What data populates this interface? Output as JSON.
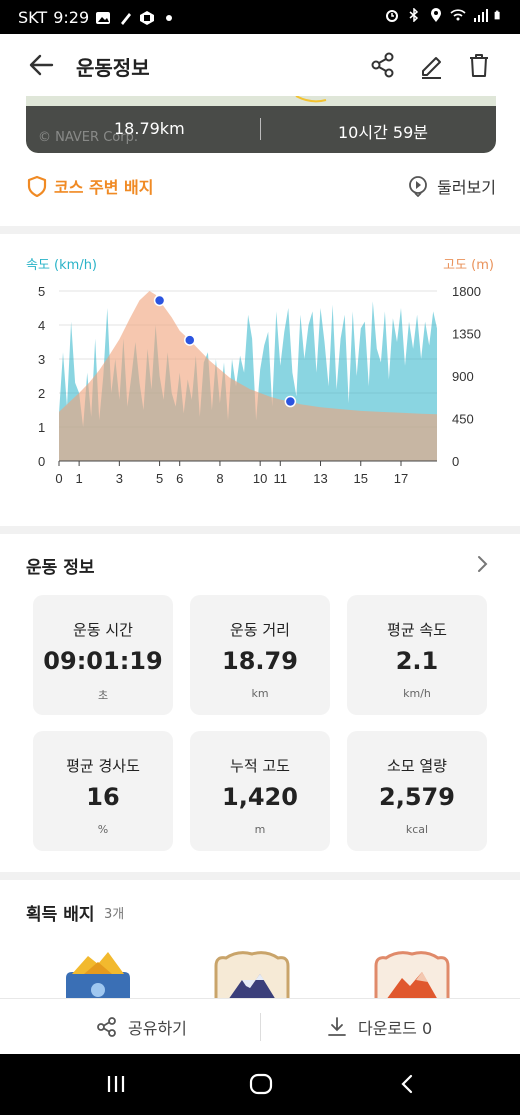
{
  "status_bar": {
    "carrier": "SKT",
    "time": "9:29"
  },
  "header": {
    "title": "운동정보"
  },
  "map": {
    "distance": "18.79km",
    "duration": "10시간 59분",
    "credit": "© NAVER Corp."
  },
  "links": {
    "course_badge": "코스 주변 배지",
    "tour": "둘러보기"
  },
  "chart_data": {
    "type": "area",
    "left_axis_label": "속도 (km/h)",
    "right_axis_label": "고도 (m)",
    "left_ticks": [
      "5",
      "4",
      "3",
      "2",
      "1",
      "0"
    ],
    "right_ticks": [
      "1800",
      "1350",
      "900",
      "450",
      "0"
    ],
    "x_ticks": [
      "0",
      "1",
      "3",
      "5",
      "6",
      "8",
      "10",
      "11",
      "13",
      "15",
      "17"
    ],
    "ylim_left": [
      0,
      5
    ],
    "ylim_right": [
      0,
      1800
    ],
    "xlim": [
      0,
      18.79
    ],
    "colors": {
      "speed": "#29b3c8",
      "altitude": "#f0a27a",
      "marker": "#2b54e0"
    },
    "series": [
      {
        "name": "속도 (km/h)",
        "axis": "left",
        "x": [
          0,
          0.2,
          0.4,
          0.6,
          0.8,
          1.0,
          1.2,
          1.4,
          1.6,
          1.8,
          2.0,
          2.2,
          2.4,
          2.6,
          2.8,
          3.0,
          3.2,
          3.4,
          3.6,
          3.8,
          4.0,
          4.2,
          4.4,
          4.6,
          4.8,
          5.0,
          5.2,
          5.4,
          5.6,
          5.8,
          6.0,
          6.2,
          6.4,
          6.6,
          6.8,
          7.0,
          7.2,
          7.4,
          7.6,
          7.8,
          8.0,
          8.2,
          8.4,
          8.6,
          8.8,
          9.0,
          9.2,
          9.4,
          9.6,
          9.8,
          10.0,
          10.2,
          10.4,
          10.6,
          10.8,
          11.0,
          11.2,
          11.4,
          11.6,
          11.8,
          12.0,
          12.2,
          12.4,
          12.6,
          12.8,
          13.0,
          13.2,
          13.4,
          13.6,
          13.8,
          14.0,
          14.2,
          14.4,
          14.6,
          14.8,
          15.0,
          15.2,
          15.4,
          15.6,
          15.8,
          16.0,
          16.2,
          16.4,
          16.6,
          16.8,
          17.0,
          17.2,
          17.4,
          17.6,
          17.8,
          18.0,
          18.2,
          18.4,
          18.6,
          18.79
        ],
        "values": [
          1.4,
          3.2,
          1.6,
          4.1,
          2.3,
          2.0,
          1.0,
          2.6,
          1.3,
          3.6,
          1.2,
          2.5,
          4.5,
          2.0,
          3.0,
          1.8,
          3.6,
          1.6,
          2.5,
          3.5,
          2.3,
          1.5,
          3.3,
          2.1,
          4.0,
          2.5,
          1.8,
          3.2,
          2.0,
          1.6,
          2.6,
          1.4,
          2.4,
          1.8,
          3.1,
          1.3,
          2.9,
          3.2,
          1.5,
          3.0,
          1.7,
          2.9,
          1.2,
          3.0,
          2.2,
          3.1,
          2.6,
          4.3,
          3.6,
          1.2,
          2.7,
          3.4,
          3.8,
          1.6,
          4.4,
          2.8,
          3.8,
          4.5,
          2.6,
          1.9,
          4.3,
          3.0,
          4.0,
          4.4,
          2.6,
          4.5,
          3.5,
          2.2,
          4.6,
          2.1,
          3.6,
          4.3,
          1.7,
          4.4,
          2.5,
          3.9,
          4.1,
          2.2,
          4.7,
          3.3,
          2.9,
          4.4,
          2.4,
          4.2,
          3.5,
          4.5,
          2.8,
          4.1,
          3.3,
          4.3,
          3.0,
          4.1,
          3.4,
          4.4,
          3.9
        ]
      },
      {
        "name": "고도 (m)",
        "axis": "right",
        "x": [
          0,
          0.5,
          1,
          1.5,
          2,
          2.5,
          3,
          3.5,
          4,
          4.5,
          4.8,
          5.2,
          5.6,
          6,
          6.5,
          7,
          7.5,
          8,
          8.5,
          9,
          9.5,
          10,
          10.5,
          11,
          11.5,
          12,
          13,
          14,
          15,
          16,
          17,
          18,
          18.79
        ],
        "values": [
          520,
          620,
          720,
          830,
          960,
          1120,
          1290,
          1500,
          1700,
          1800,
          1760,
          1640,
          1520,
          1380,
          1280,
          1170,
          1060,
          970,
          880,
          820,
          760,
          720,
          680,
          650,
          630,
          600,
          570,
          550,
          530,
          520,
          510,
          500,
          495
        ]
      }
    ],
    "markers_x": [
      5.0,
      6.5,
      11.5
    ]
  },
  "workout": {
    "title": "운동 정보",
    "stats": [
      {
        "label": "운동 시간",
        "value": "09:01:19",
        "unit": "초"
      },
      {
        "label": "운동 거리",
        "value": "18.79",
        "unit": "km"
      },
      {
        "label": "평균 속도",
        "value": "2.1",
        "unit": "km/h"
      },
      {
        "label": "평균 경사도",
        "value": "16",
        "unit": "%"
      },
      {
        "label": "누적 고도",
        "value": "1,420",
        "unit": "m"
      },
      {
        "label": "소모 열량",
        "value": "2,579",
        "unit": "kcal"
      }
    ]
  },
  "badges": {
    "title": "획득 배지",
    "count": "3개"
  },
  "bottom": {
    "share": "공유하기",
    "download": "다운로드 0"
  }
}
